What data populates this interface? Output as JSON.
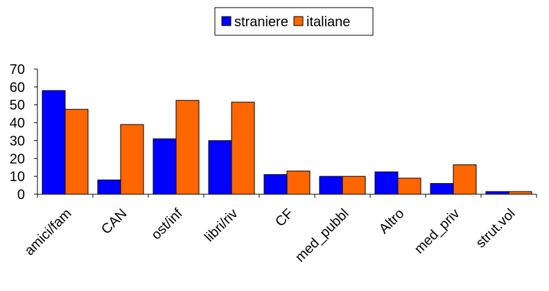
{
  "chart_data": {
    "type": "bar",
    "title": "",
    "xlabel": "",
    "ylabel": "",
    "categories": [
      "amici/fam",
      "CAN",
      "ost/inf",
      "libri/riv",
      "CF",
      "med_pubbl",
      "Altro",
      "med_priv",
      "strut.vol"
    ],
    "series": [
      {
        "name": "straniere",
        "color": "#0000FF",
        "values": [
          58,
          8,
          31,
          30,
          11,
          10,
          12.5,
          6,
          1.5
        ]
      },
      {
        "name": "italiane",
        "color": "#FF6600",
        "values": [
          47.5,
          39,
          52.5,
          51.5,
          13,
          10,
          9,
          16.5,
          1.5
        ]
      }
    ],
    "ylim": [
      0,
      70
    ],
    "yticks": [
      "0",
      "10",
      "20",
      "30",
      "40",
      "50",
      "60",
      "70"
    ],
    "grid": false,
    "legend_position": "top-center"
  }
}
